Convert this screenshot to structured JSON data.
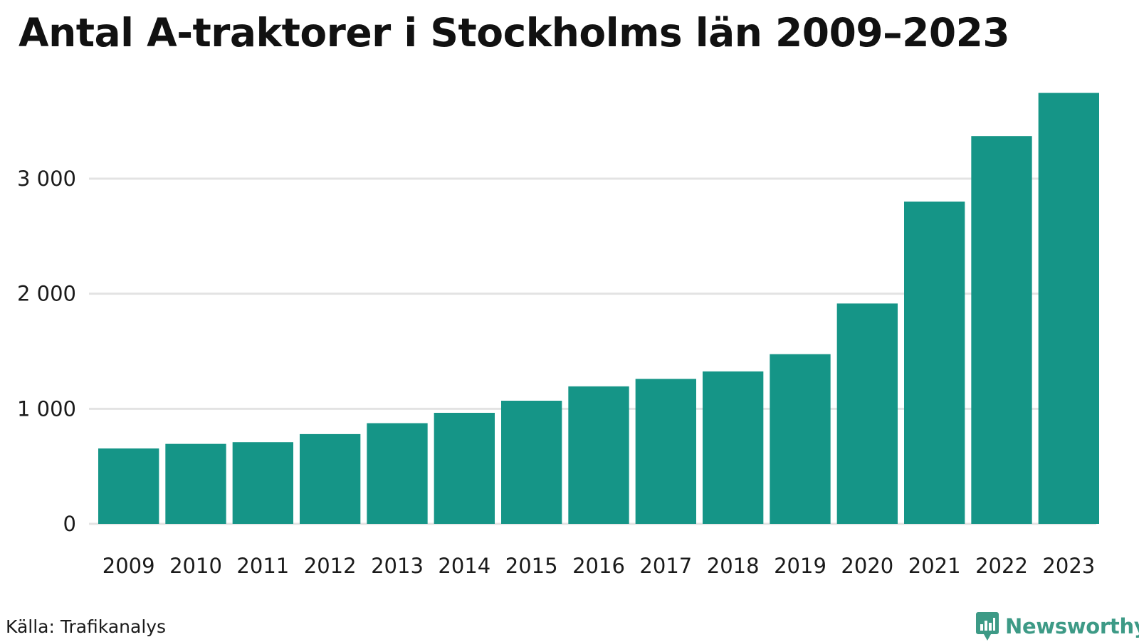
{
  "chart_data": {
    "type": "bar",
    "title": "Antal A-traktorer i Stockholms län 2009–2023",
    "categories": [
      "2009",
      "2010",
      "2011",
      "2012",
      "2013",
      "2014",
      "2015",
      "2016",
      "2017",
      "2018",
      "2019",
      "2020",
      "2021",
      "2022",
      "2023"
    ],
    "values": [
      655,
      695,
      710,
      780,
      875,
      965,
      1070,
      1195,
      1260,
      1325,
      1475,
      1915,
      2800,
      3370,
      3745
    ],
    "xlabel": "",
    "ylabel": "",
    "ylim": [
      0,
      3800
    ],
    "yticks": [
      0,
      1000,
      2000,
      3000
    ],
    "ytick_labels": [
      "0",
      "1 000",
      "2 000",
      "3 000"
    ],
    "grid": true,
    "bar_color": "#159587",
    "grid_color": "#e3e3e3"
  },
  "footer": {
    "source": "Källa: Trafikanalys",
    "brand": "Newsworthy",
    "brand_color": "#3d9a86"
  }
}
